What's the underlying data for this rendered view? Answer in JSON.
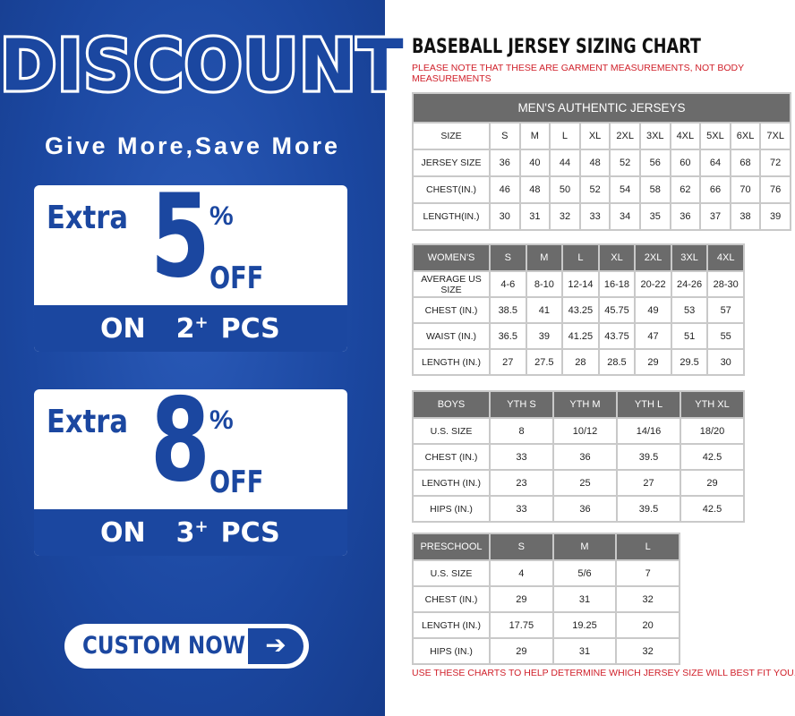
{
  "promo": {
    "headline": "DISCOUNT",
    "tagline": "Give More,Save More",
    "offers": [
      {
        "extra": "Extra",
        "number": "5",
        "percent": "%",
        "off": "OFF",
        "on": "ON",
        "qty": "2",
        "plus": "+",
        "pcs": "PCS"
      },
      {
        "extra": "Extra",
        "number": "8",
        "percent": "%",
        "off": "OFF",
        "on": "ON",
        "qty": "3",
        "plus": "+",
        "pcs": "PCS"
      }
    ],
    "cta": "CUSTOM NOW",
    "cta_icon": "arrow-right-icon",
    "brand_color": "#1b47a0"
  },
  "chart": {
    "title": "BASEBALL JERSEY SIZING CHART",
    "note": "PLEASE NOTE THAT THESE ARE GARMENT MEASUREMENTS, NOT BODY MEASUREMENTS",
    "footer": "USE THESE CHARTS TO HELP DETERMINE WHICH JERSEY SIZE WILL BEST FIT YOU.",
    "mens": {
      "title": "MEN'S AUTHENTIC JERSEYS",
      "rows": [
        [
          "SIZE",
          "S",
          "M",
          "L",
          "XL",
          "2XL",
          "3XL",
          "4XL",
          "5XL",
          "6XL",
          "7XL"
        ],
        [
          "JERSEY SIZE",
          "36",
          "40",
          "44",
          "48",
          "52",
          "56",
          "60",
          "64",
          "68",
          "72"
        ],
        [
          "CHEST(IN.)",
          "46",
          "48",
          "50",
          "52",
          "54",
          "58",
          "62",
          "66",
          "70",
          "76"
        ],
        [
          "LENGTH(IN.)",
          "30",
          "31",
          "32",
          "33",
          "34",
          "35",
          "36",
          "37",
          "38",
          "39"
        ]
      ]
    },
    "womens": {
      "header": [
        "WOMEN'S",
        "S",
        "M",
        "L",
        "XL",
        "2XL",
        "3XL",
        "4XL"
      ],
      "rows": [
        [
          "AVERAGE US SIZE",
          "4-6",
          "8-10",
          "12-14",
          "16-18",
          "20-22",
          "24-26",
          "28-30"
        ],
        [
          "CHEST (IN.)",
          "38.5",
          "41",
          "43.25",
          "45.75",
          "49",
          "53",
          "57"
        ],
        [
          "WAIST (IN.)",
          "36.5",
          "39",
          "41.25",
          "43.75",
          "47",
          "51",
          "55"
        ],
        [
          "LENGTH (IN.)",
          "27",
          "27.5",
          "28",
          "28.5",
          "29",
          "29.5",
          "30"
        ]
      ]
    },
    "boys": {
      "header": [
        "BOYS",
        "YTH S",
        "YTH M",
        "YTH L",
        "YTH XL"
      ],
      "rows": [
        [
          "U.S. SIZE",
          "8",
          "10/12",
          "14/16",
          "18/20"
        ],
        [
          "CHEST (IN.)",
          "33",
          "36",
          "39.5",
          "42.5"
        ],
        [
          "LENGTH (IN.)",
          "23",
          "25",
          "27",
          "29"
        ],
        [
          "HIPS (IN.)",
          "33",
          "36",
          "39.5",
          "42.5"
        ]
      ]
    },
    "preschool": {
      "header": [
        "PRESCHOOL",
        "S",
        "M",
        "L"
      ],
      "rows": [
        [
          "U.S. SIZE",
          "4",
          "5/6",
          "7"
        ],
        [
          "CHEST (IN.)",
          "29",
          "31",
          "32"
        ],
        [
          "LENGTH (IN.)",
          "17.75",
          "19.25",
          "20"
        ],
        [
          "HIPS (IN.)",
          "29",
          "31",
          "32"
        ]
      ]
    }
  }
}
